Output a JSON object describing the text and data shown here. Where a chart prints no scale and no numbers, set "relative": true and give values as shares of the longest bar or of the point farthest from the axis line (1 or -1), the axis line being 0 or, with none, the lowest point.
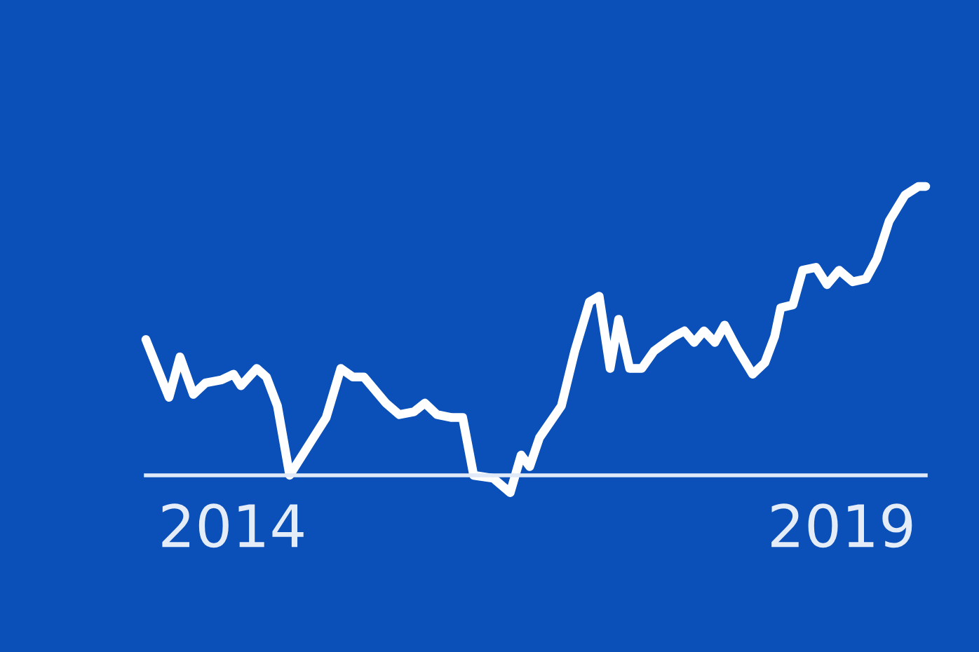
{
  "chart_data": {
    "type": "line",
    "relative": true,
    "color": "#ffffff",
    "tick_labels": "x",
    "xlim": [
      2013.29,
      2019.69
    ],
    "xticks": [
      2014,
      2019
    ],
    "x": [
      2013.29,
      2013.48,
      2013.57,
      2013.68,
      2013.78,
      2013.91,
      2014.01,
      2014.07,
      2014.2,
      2014.28,
      2014.37,
      2014.47,
      2014.65,
      2014.77,
      2014.89,
      2014.99,
      2015.08,
      2015.26,
      2015.37,
      2015.49,
      2015.58,
      2015.68,
      2015.8,
      2015.89,
      2015.98,
      2016.14,
      2016.28,
      2016.37,
      2016.44,
      2016.52,
      2016.7,
      2016.81,
      2016.93,
      2017.01,
      2017.1,
      2017.17,
      2017.26,
      2017.36,
      2017.46,
      2017.62,
      2017.71,
      2017.79,
      2017.87,
      2017.96,
      2018.04,
      2018.14,
      2018.27,
      2018.37,
      2018.45,
      2018.5,
      2018.6,
      2018.68,
      2018.79,
      2018.88,
      2018.98,
      2019.09,
      2019.2,
      2019.29,
      2019.39,
      2019.52,
      2019.63,
      2019.69
    ],
    "values": [
      0.47,
      0.27,
      0.41,
      0.28,
      0.32,
      0.33,
      0.35,
      0.31,
      0.37,
      0.34,
      0.24,
      0.0,
      0.12,
      0.2,
      0.37,
      0.34,
      0.34,
      0.25,
      0.21,
      0.22,
      0.25,
      0.21,
      0.2,
      0.2,
      0.0,
      -0.01,
      -0.06,
      0.07,
      0.03,
      0.13,
      0.24,
      0.43,
      0.6,
      0.62,
      0.37,
      0.54,
      0.37,
      0.37,
      0.43,
      0.48,
      0.5,
      0.46,
      0.5,
      0.46,
      0.52,
      0.44,
      0.35,
      0.39,
      0.48,
      0.58,
      0.59,
      0.71,
      0.72,
      0.66,
      0.71,
      0.67,
      0.68,
      0.75,
      0.88,
      0.97,
      1.0,
      1.0
    ]
  }
}
